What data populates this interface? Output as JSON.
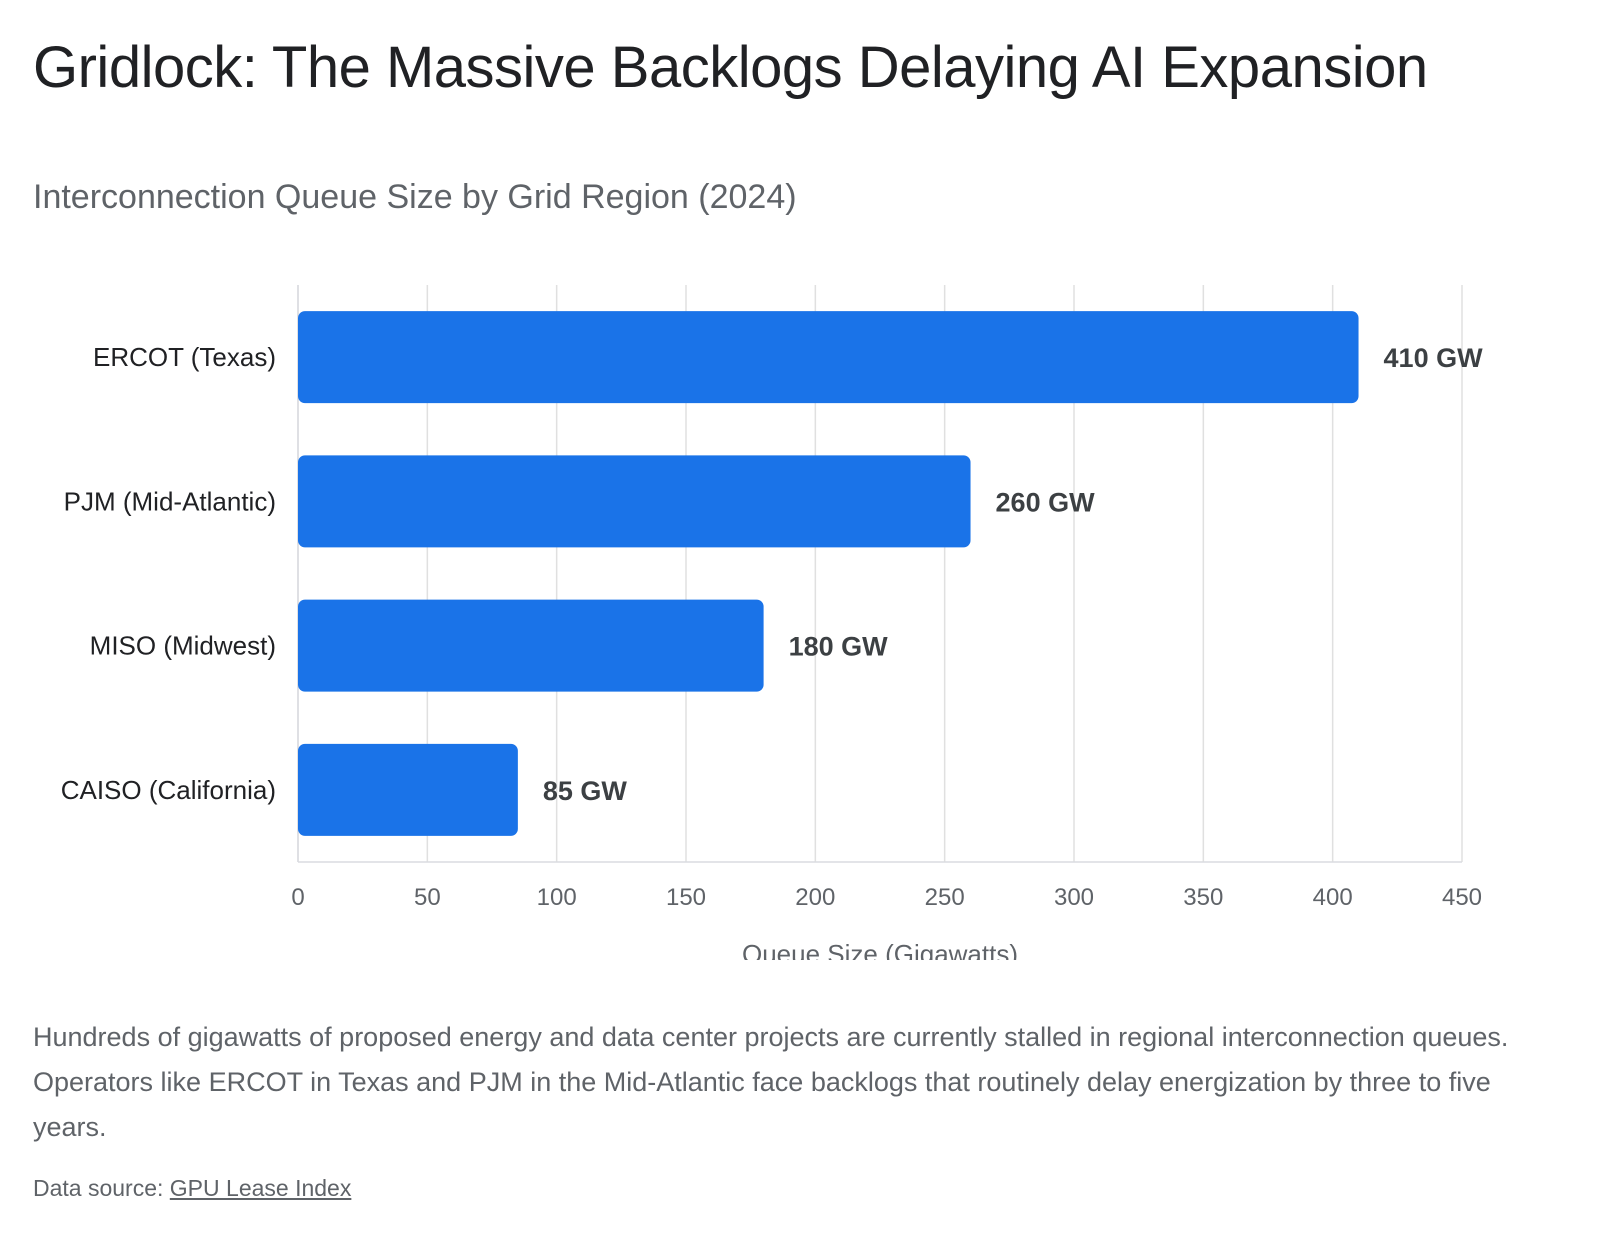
{
  "header": {
    "title": "Gridlock: The Massive Backlogs Delaying AI Expansion"
  },
  "chart_data": {
    "type": "bar",
    "orientation": "horizontal",
    "subtitle": "Interconnection Queue Size by Grid Region (2024)",
    "categories": [
      "ERCOT (Texas)",
      "PJM (Mid-Atlantic)",
      "MISO (Midwest)",
      "CAISO (California)"
    ],
    "values": [
      410,
      260,
      180,
      85
    ],
    "data_labels": [
      "410 GW",
      "260 GW",
      "180 GW",
      "85 GW"
    ],
    "xlabel": "Queue Size (Gigawatts)",
    "ylabel": "",
    "xlim": [
      0,
      450
    ],
    "x_ticks": [
      0,
      50,
      100,
      150,
      200,
      250,
      300,
      350,
      400,
      450
    ],
    "grid": true,
    "legend": "none",
    "bar_color": "#1a73e8"
  },
  "footer": {
    "description": "Hundreds of gigawatts of proposed energy and data center projects are currently stalled in regional interconnection queues. Operators like ERCOT in Texas and PJM in the Mid-Atlantic face backlogs that routinely delay energization by three to five years.",
    "source_prefix": "Data source: ",
    "source_link": "GPU Lease Index"
  }
}
